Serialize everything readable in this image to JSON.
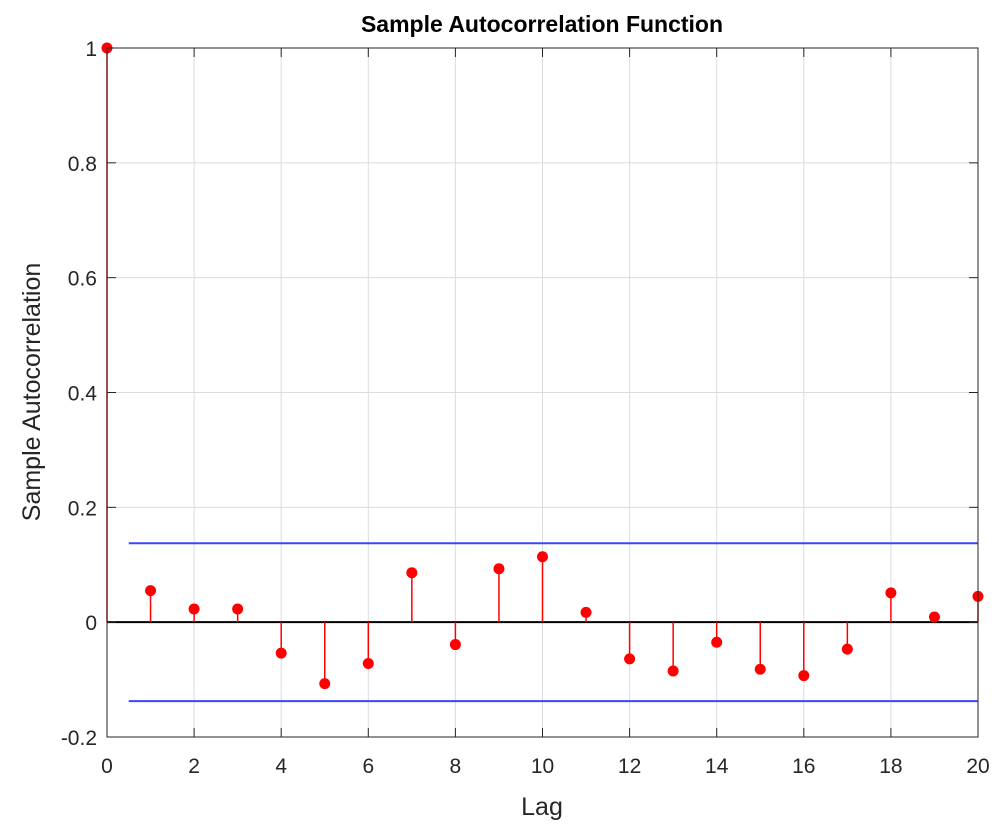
{
  "chart_data": {
    "type": "stem",
    "title": "Sample Autocorrelation Function",
    "xlabel": "Lag",
    "ylabel": "Sample Autocorrelation",
    "xlim": [
      0,
      20
    ],
    "ylim": [
      -0.2,
      1
    ],
    "xticks": [
      0,
      2,
      4,
      6,
      8,
      10,
      12,
      14,
      16,
      18,
      20
    ],
    "xtick_labels": [
      "0",
      "2",
      "4",
      "6",
      "8",
      "10",
      "12",
      "14",
      "16",
      "18",
      "20"
    ],
    "yticks": [
      -0.2,
      0,
      0.2,
      0.4,
      0.6,
      0.8,
      1
    ],
    "ytick_labels": [
      "-0.2",
      "0",
      "0.2",
      "0.4",
      "0.6",
      "0.8",
      "1"
    ],
    "grid": true,
    "series": [
      {
        "lags": [
          0,
          1,
          2,
          3,
          4,
          5,
          6,
          7,
          8,
          9,
          10,
          11,
          12,
          13,
          14,
          15,
          16,
          17,
          18,
          19,
          20
        ],
        "values": [
          1.0,
          0.055,
          0.023,
          0.023,
          -0.054,
          -0.107,
          -0.072,
          0.086,
          -0.039,
          0.093,
          0.114,
          0.017,
          -0.064,
          -0.085,
          -0.035,
          -0.082,
          -0.093,
          -0.047,
          0.051,
          0.009,
          0.045
        ],
        "color": "#ff0000"
      }
    ],
    "confidence_bounds": {
      "upper": 0.1375,
      "lower": -0.1375,
      "x_range": [
        0.5,
        20
      ],
      "color": "#3b45ff"
    },
    "zero_line_color": "#000000"
  }
}
